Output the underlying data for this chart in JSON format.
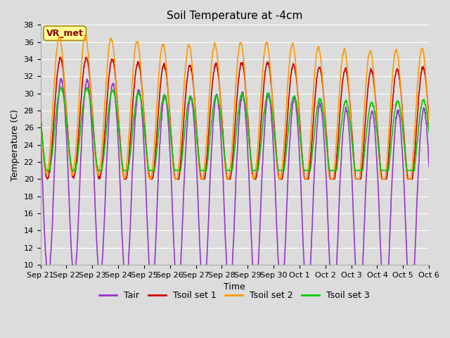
{
  "title": "Soil Temperature at -4cm",
  "xlabel": "Time",
  "ylabel": "Temperature (C)",
  "ylim": [
    10,
    38
  ],
  "yticks": [
    10,
    12,
    14,
    16,
    18,
    20,
    22,
    24,
    26,
    28,
    30,
    32,
    34,
    36,
    38
  ],
  "background_color": "#dcdcdc",
  "plot_bg_color": "#dcdcdc",
  "colors": {
    "Tair": "#9933cc",
    "Tsoil set 1": "#cc0000",
    "Tsoil set 2": "#ff9900",
    "Tsoil set 3": "#00cc00"
  },
  "legend_labels": [
    "Tair",
    "Tsoil set 1",
    "Tsoil set 2",
    "Tsoil set 3"
  ],
  "annotation_text": "VR_met",
  "annotation_color": "#8b0000",
  "annotation_bg": "#ffff99",
  "n_days": 15,
  "points_per_day": 96,
  "xtick_labels": [
    "Sep 21",
    "Sep 22",
    "Sep 23",
    "Sep 24",
    "Sep 25",
    "Sep 26",
    "Sep 27",
    "Sep 28",
    "Sep 29",
    "Sep 30",
    "Oct 1",
    "Oct 2",
    "Oct 3",
    "Oct 4",
    "Oct 5",
    "Oct 6"
  ],
  "title_fontsize": 11,
  "axis_label_fontsize": 9,
  "tick_fontsize": 8,
  "legend_fontsize": 9,
  "linewidth": 1.2
}
